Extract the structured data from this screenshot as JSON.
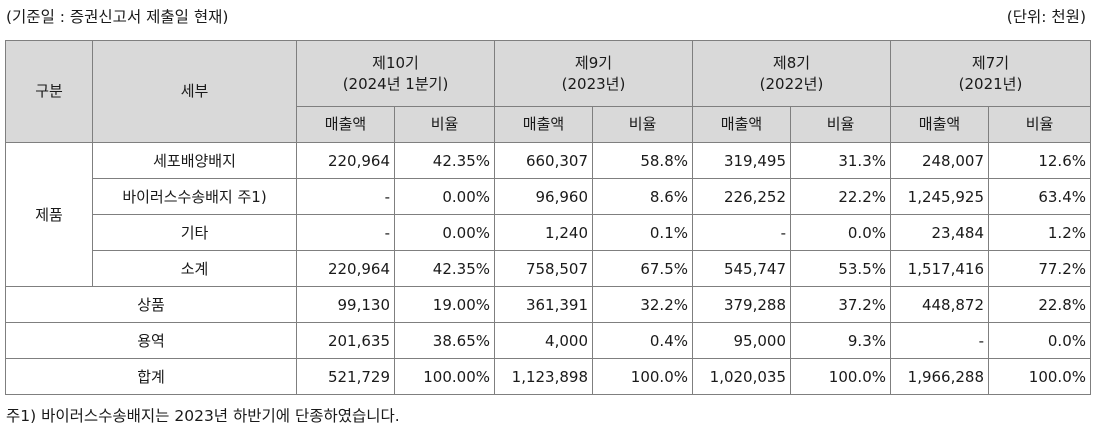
{
  "caption": "(기준일 : 증권신고서 제출일 현재)",
  "unit": "(단위: 천원)",
  "footnote": "주1) 바이러스수송배지는 2023년 하반기에 단종하였습니다.",
  "header": {
    "col_group": "구분",
    "col_detail": "세부",
    "periods": [
      {
        "line1": "제10기",
        "line2": "(2024년 1분기)"
      },
      {
        "line1": "제9기",
        "line2": "(2023년)"
      },
      {
        "line1": "제8기",
        "line2": "(2022년)"
      },
      {
        "line1": "제7기",
        "line2": "(2021년)"
      }
    ],
    "sales_label": "매출액",
    "ratio_label": "비율"
  },
  "product_group": "제품",
  "product_rows": [
    {
      "name": "세포배양배지",
      "cells": [
        "220,964",
        "42.35%",
        "660,307",
        "58.8%",
        "319,495",
        "31.3%",
        "248,007",
        "12.6%"
      ]
    },
    {
      "name": "바이러스수송배지 주1)",
      "cells": [
        "-",
        "0.00%",
        "96,960",
        "8.6%",
        "226,252",
        "22.2%",
        "1,245,925",
        "63.4%"
      ]
    },
    {
      "name": "기타",
      "cells": [
        "-",
        "0.00%",
        "1,240",
        "0.1%",
        "-",
        "0.0%",
        "23,484",
        "1.2%"
      ]
    },
    {
      "name": "소계",
      "cells": [
        "220,964",
        "42.35%",
        "758,507",
        "67.5%",
        "545,747",
        "53.5%",
        "1,517,416",
        "77.2%"
      ]
    }
  ],
  "other_rows": [
    {
      "name": "상품",
      "cells": [
        "99,130",
        "19.00%",
        "361,391",
        "32.2%",
        "379,288",
        "37.2%",
        "448,872",
        "22.8%"
      ]
    },
    {
      "name": "용역",
      "cells": [
        "201,635",
        "38.65%",
        "4,000",
        "0.4%",
        "95,000",
        "9.3%",
        "-",
        "0.0%"
      ]
    },
    {
      "name": "합계",
      "cells": [
        "521,729",
        "100.00%",
        "1,123,898",
        "100.0%",
        "1,020,035",
        "100.0%",
        "1,966,288",
        "100.0%"
      ]
    }
  ]
}
